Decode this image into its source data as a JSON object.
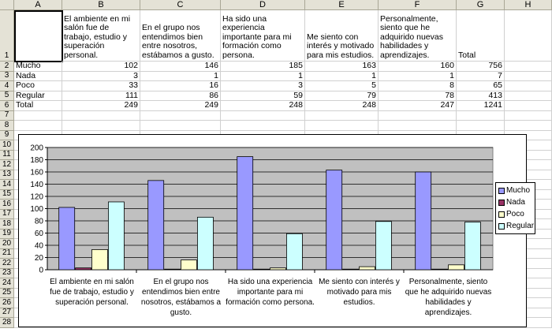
{
  "columns": [
    "A",
    "B",
    "C",
    "D",
    "E",
    "F",
    "G",
    "H"
  ],
  "rows": [
    "1",
    "2",
    "3",
    "4",
    "5",
    "6",
    "7",
    "8",
    "9",
    "10",
    "11",
    "12",
    "13",
    "14",
    "15",
    "16",
    "17",
    "18",
    "19",
    "20",
    "21",
    "22",
    "23",
    "24",
    "25",
    "26",
    "27",
    "28"
  ],
  "header_row": {
    "b": "El ambiente en mi salón fue de trabajo, estudio y superación personal.",
    "c": "En el grupo nos entendimos bien entre nosotros, estábamos a gusto.",
    "d": "Ha sido una experiencia importante para mi formación como persona.",
    "e": "Me siento con interés y motivado para mis estudios.",
    "f": "Personalmente, siento que he adquirido nuevas habilidades y aprendizajes.",
    "g": "Total"
  },
  "table_rows": [
    {
      "label": "Mucho",
      "values": [
        "102",
        "146",
        "185",
        "163",
        "160",
        "756"
      ]
    },
    {
      "label": "Nada",
      "values": [
        "3",
        "1",
        "1",
        "1",
        "1",
        "7"
      ]
    },
    {
      "label": "Poco",
      "values": [
        "33",
        "16",
        "3",
        "5",
        "8",
        "65"
      ]
    },
    {
      "label": "Regular",
      "values": [
        "111",
        "86",
        "59",
        "79",
        "78",
        "413"
      ]
    },
    {
      "label": "Total",
      "values": [
        "249",
        "249",
        "248",
        "248",
        "247",
        "1241"
      ]
    }
  ],
  "chart_data": {
    "type": "bar",
    "categories": [
      "El ambiente en mi salón fue de trabajo, estudio y superación personal.",
      "En el grupo nos entendimos bien entre nosotros, estábamos a gusto.",
      "Ha sido una experiencia importante para mi formación como persona.",
      "Me siento con interés y motivado para mis estudios.",
      "Personalmente, siento que he adquirido nuevas habilidades y aprendizajes."
    ],
    "series": [
      {
        "name": "Mucho",
        "values": [
          102,
          146,
          185,
          163,
          160
        ],
        "color": "#9999ff"
      },
      {
        "name": "Nada",
        "values": [
          3,
          1,
          1,
          1,
          1
        ],
        "color": "#993366"
      },
      {
        "name": "Poco",
        "values": [
          33,
          16,
          3,
          5,
          8
        ],
        "color": "#ffffcc"
      },
      {
        "name": "Regular",
        "values": [
          111,
          86,
          59,
          79,
          78
        ],
        "color": "#ccffff"
      }
    ],
    "ylim": [
      0,
      200
    ],
    "yticks": [
      0,
      20,
      40,
      60,
      80,
      100,
      120,
      140,
      160,
      180,
      200
    ],
    "grid": true,
    "legend": "right",
    "plot_background": "#c0c0c0"
  },
  "chart_label_lines": [
    [
      "El ambiente en mi salón",
      "fue de trabajo, estudio y",
      "superación personal."
    ],
    [
      "En el grupo nos",
      "entendimos bien entre",
      "nosotros, estábamos a",
      "gusto."
    ],
    [
      "Ha sido una experiencia",
      "importante para mi",
      "formación como persona."
    ],
    [
      "Me siento con interés y",
      "motivado para mis",
      "estudios."
    ],
    [
      "Personalmente, siento",
      "que he adquirido nuevas",
      "habilidades y",
      "aprendizajes."
    ]
  ]
}
